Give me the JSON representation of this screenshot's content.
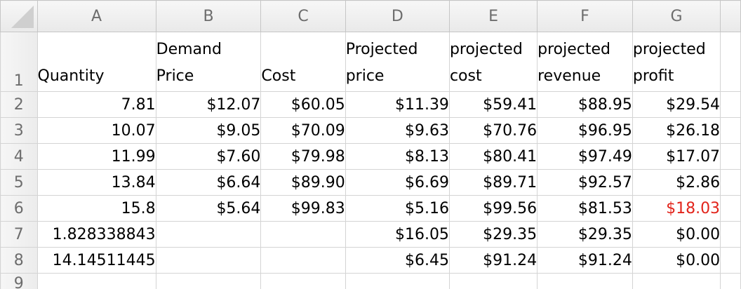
{
  "columns": [
    "A",
    "B",
    "C",
    "D",
    "E",
    "F",
    "G"
  ],
  "row_numbers": [
    "1",
    "2",
    "3",
    "4",
    "5",
    "6",
    "7",
    "8",
    "9"
  ],
  "headers": {
    "A": "Quantity",
    "B": "Demand Price",
    "C": "Cost",
    "D": "Projected price",
    "E": "projected cost",
    "F": "projected revenue",
    "G": "projected profit"
  },
  "rows": [
    {
      "A": "7.81",
      "B": "$12.07",
      "C": "$60.05",
      "D": "$11.39",
      "E": "$59.41",
      "F": "$88.95",
      "G": "$29.54"
    },
    {
      "A": "10.07",
      "B": "$9.05",
      "C": "$70.09",
      "D": "$9.63",
      "E": "$70.76",
      "F": "$96.95",
      "G": "$26.18"
    },
    {
      "A": "11.99",
      "B": "$7.60",
      "C": "$79.98",
      "D": "$8.13",
      "E": "$80.41",
      "F": "$97.49",
      "G": "$17.07"
    },
    {
      "A": "13.84",
      "B": "$6.64",
      "C": "$89.90",
      "D": "$6.69",
      "E": "$89.71",
      "F": "$92.57",
      "G": "$2.86"
    },
    {
      "A": "15.8",
      "B": "$5.64",
      "C": "$99.83",
      "D": "$5.16",
      "E": "$99.56",
      "F": "$81.53",
      "G": "$18.03"
    },
    {
      "A": "1.828338843",
      "B": "",
      "C": "",
      "D": "$16.05",
      "E": "$29.35",
      "F": "$29.35",
      "G": "$0.00"
    },
    {
      "A": "14.14511445",
      "B": "",
      "C": "",
      "D": "$6.45",
      "E": "$91.24",
      "F": "$91.24",
      "G": "$0.00"
    },
    {
      "A": "",
      "B": "",
      "C": "",
      "D": "",
      "E": "",
      "F": "",
      "G": ""
    }
  ],
  "negative_cell": {
    "row": 6,
    "column": "G",
    "color": "#e2241b"
  },
  "colors": {
    "grid_line": "#d4d4d4",
    "header_text": "#6d6d6d",
    "negative_value": "#e2241b"
  }
}
